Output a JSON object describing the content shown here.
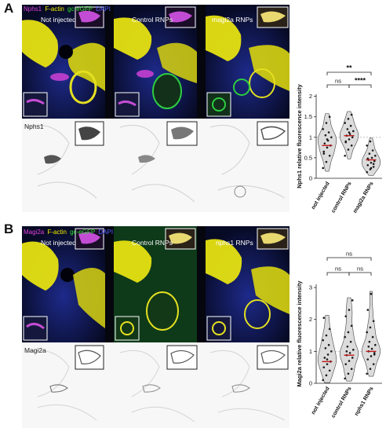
{
  "panels": [
    {
      "letter": "A",
      "stain": [
        {
          "text": "Nphs1",
          "color": "#e040e0"
        },
        {
          "text": "F-actin",
          "color": "#f0f000"
        },
        {
          "text": "gc-eGFP",
          "color": "#30e030"
        },
        {
          "text": "DAPI",
          "color": "#5060ff"
        }
      ],
      "conditions": [
        "Not injected",
        "Control RNPs",
        "magi2a RNPs"
      ],
      "gray_label": "Nphs1"
    },
    {
      "letter": "B",
      "stain": [
        {
          "text": "Magi2a",
          "color": "#e040e0"
        },
        {
          "text": "F-actin",
          "color": "#f0f000"
        },
        {
          "text": "gc-eGFP",
          "color": "#30e030"
        },
        {
          "text": "DAPI",
          "color": "#5060ff"
        }
      ],
      "conditions": [
        "Not injected",
        "Control RNPs",
        "nphs1 RNPs"
      ],
      "gray_label": "Magi2a"
    }
  ],
  "chart_data": [
    {
      "type": "violin",
      "ylabel": "Nphs1 relative fluorescence intensity",
      "categories": [
        "not injected",
        "control RNPs",
        "magi2a RNPs"
      ],
      "yticks": [
        0,
        0.5,
        1,
        1.5,
        2
      ],
      "ylim": [
        0,
        2.05
      ],
      "reference_line": 1,
      "medians": [
        0.8,
        1.04,
        0.45
      ],
      "points": [
        [
          0.25,
          0.4,
          0.55,
          0.65,
          0.75,
          0.8,
          0.85,
          0.92,
          1.0,
          1.05,
          1.12,
          1.2,
          1.35,
          1.5,
          0.6,
          0.95
        ],
        [
          0.55,
          0.7,
          0.8,
          0.88,
          0.95,
          1.0,
          1.04,
          1.08,
          1.15,
          1.2,
          1.28,
          1.35,
          1.45,
          1.55,
          0.9,
          1.12
        ],
        [
          0.15,
          0.22,
          0.28,
          0.32,
          0.38,
          0.42,
          0.45,
          0.5,
          0.55,
          0.6,
          0.68,
          0.8,
          0.9,
          0.35,
          0.48,
          0.25
        ]
      ],
      "significance": [
        {
          "from": 0,
          "to": 1,
          "label": "ns"
        },
        {
          "from": 1,
          "to": 2,
          "label": "****"
        },
        {
          "from": 0,
          "to": 2,
          "label": "**"
        }
      ]
    },
    {
      "type": "violin",
      "ylabel": "Magi2a relative fluorescence intensity",
      "categories": [
        "not injected",
        "control RNPs",
        "nphs1 RNPs"
      ],
      "yticks": [
        0,
        1,
        2,
        3
      ],
      "ylim": [
        0,
        3.1
      ],
      "reference_line": 1,
      "medians": [
        0.68,
        0.88,
        1.0
      ],
      "points": [
        [
          0.1,
          0.25,
          0.4,
          0.5,
          0.6,
          0.68,
          0.8,
          0.9,
          1.0,
          1.1,
          1.2,
          1.35,
          1.5,
          1.7,
          2.05,
          0.75
        ],
        [
          0.15,
          0.3,
          0.45,
          0.6,
          0.7,
          0.8,
          0.88,
          0.95,
          1.05,
          1.15,
          1.3,
          1.45,
          1.6,
          1.8,
          2.1,
          2.3,
          2.6,
          1.0
        ],
        [
          0.3,
          0.45,
          0.6,
          0.75,
          0.85,
          0.95,
          1.0,
          1.08,
          1.2,
          1.3,
          1.45,
          1.6,
          1.75,
          1.95,
          2.3,
          2.8,
          0.9,
          1.15
        ]
      ],
      "significance": [
        {
          "from": 0,
          "to": 1,
          "label": "ns"
        },
        {
          "from": 1,
          "to": 2,
          "label": "ns"
        },
        {
          "from": 0,
          "to": 2,
          "label": "ns"
        }
      ]
    }
  ]
}
